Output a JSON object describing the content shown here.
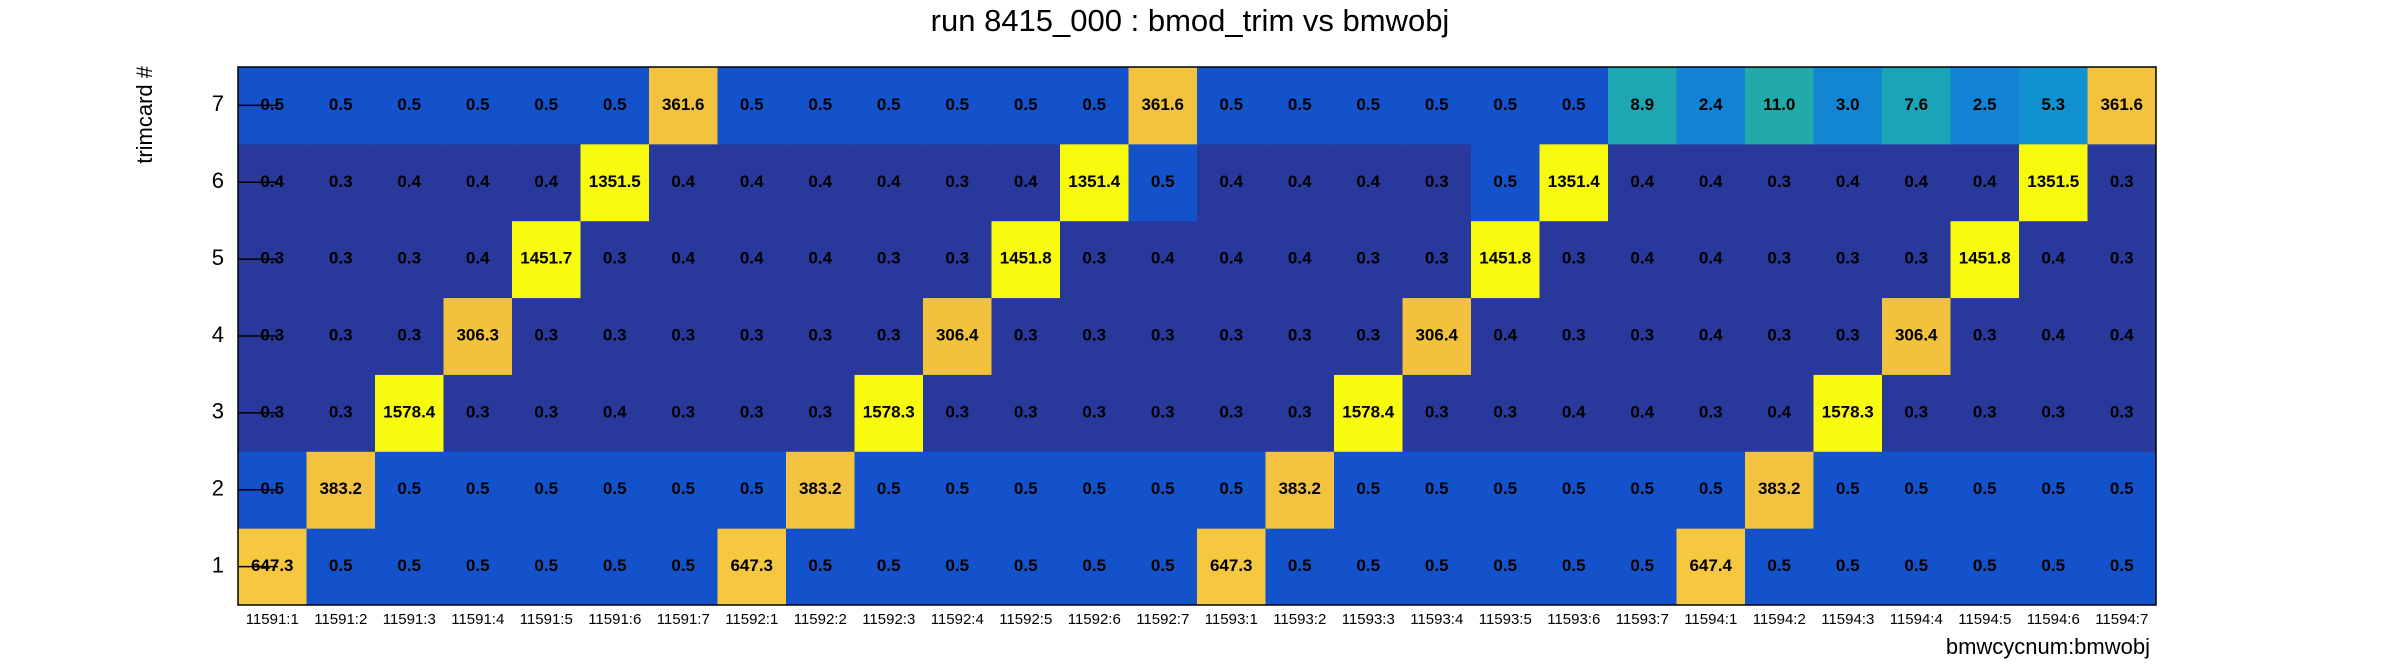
{
  "chart_data": {
    "type": "heatmap",
    "title": "run 8415_000 : bmod_trim vs bmwobj",
    "x_label": "bmwcycnum:bmwobj",
    "y_label": "trimcard #",
    "categories": [
      "11591:1",
      "11591:2",
      "11591:3",
      "11591:4",
      "11591:5",
      "11591:6",
      "11591:7",
      "11592:1",
      "11592:2",
      "11592:3",
      "11592:4",
      "11592:5",
      "11592:6",
      "11592:7",
      "11593:1",
      "11593:2",
      "11593:3",
      "11593:4",
      "11593:5",
      "11593:6",
      "11593:7",
      "11594:1",
      "11594:2",
      "11594:3",
      "11594:4",
      "11594:5",
      "11594:6",
      "11594:7"
    ],
    "ylim": [
      0.5,
      7.5
    ],
    "yticks": [
      1,
      2,
      3,
      4,
      5,
      6,
      7
    ],
    "z_log": true,
    "palette": {
      "stops": [
        0,
        0.04,
        0.06,
        0.24,
        0.27,
        0.34,
        0.38,
        0.42,
        0.6,
        0.8,
        0.9,
        0.98,
        1
      ],
      "colors": [
        "#29399b",
        "#29399b",
        "#1452cd",
        "#1283d4",
        "#1285d3",
        "#1192d0",
        "#1ba5b5",
        "#22aaa8",
        "#7fbf7b",
        "#f2c13e",
        "#f5c840",
        "#f8fa0e",
        "#f9fb0e"
      ]
    },
    "z": [
      [
        647.3,
        0.5,
        0.5,
        0.5,
        0.5,
        0.5,
        0.5,
        647.3,
        0.5,
        0.5,
        0.5,
        0.5,
        0.5,
        0.5,
        647.3,
        0.5,
        0.5,
        0.5,
        0.5,
        0.5,
        0.5,
        647.4,
        0.5,
        0.5,
        0.5,
        0.5,
        0.5,
        0.5
      ],
      [
        0.5,
        383.2,
        0.5,
        0.5,
        0.5,
        0.5,
        0.5,
        0.5,
        383.2,
        0.5,
        0.5,
        0.5,
        0.5,
        0.5,
        0.5,
        383.2,
        0.5,
        0.5,
        0.5,
        0.5,
        0.5,
        0.5,
        383.2,
        0.5,
        0.5,
        0.5,
        0.5,
        0.5
      ],
      [
        0.3,
        0.3,
        1578.4,
        0.3,
        0.3,
        0.4,
        0.3,
        0.3,
        0.3,
        1578.3,
        0.3,
        0.3,
        0.3,
        0.3,
        0.3,
        0.3,
        1578.4,
        0.3,
        0.3,
        0.4,
        0.4,
        0.3,
        0.4,
        1578.3,
        0.3,
        0.3,
        0.3,
        0.3
      ],
      [
        0.3,
        0.3,
        0.3,
        306.3,
        0.3,
        0.3,
        0.3,
        0.3,
        0.3,
        0.3,
        306.4,
        0.3,
        0.3,
        0.3,
        0.3,
        0.3,
        0.3,
        306.4,
        0.4,
        0.3,
        0.3,
        0.4,
        0.3,
        0.3,
        306.4,
        0.3,
        0.4,
        0.4
      ],
      [
        0.3,
        0.3,
        0.3,
        0.4,
        1451.7,
        0.3,
        0.4,
        0.4,
        0.4,
        0.3,
        0.3,
        1451.8,
        0.3,
        0.4,
        0.4,
        0.4,
        0.3,
        0.3,
        1451.8,
        0.3,
        0.4,
        0.4,
        0.3,
        0.3,
        0.3,
        1451.8,
        0.4,
        0.3
      ],
      [
        0.4,
        0.3,
        0.4,
        0.4,
        0.4,
        1351.5,
        0.4,
        0.4,
        0.4,
        0.4,
        0.3,
        0.4,
        1351.4,
        0.5,
        0.4,
        0.4,
        0.4,
        0.3,
        0.5,
        1351.4,
        0.4,
        0.4,
        0.3,
        0.4,
        0.4,
        0.4,
        1351.5,
        0.3
      ],
      [
        0.5,
        0.5,
        0.5,
        0.5,
        0.5,
        0.5,
        361.6,
        0.5,
        0.5,
        0.5,
        0.5,
        0.5,
        0.5,
        361.6,
        0.5,
        0.5,
        0.5,
        0.5,
        0.5,
        0.5,
        8.9,
        2.4,
        11.0,
        3.0,
        7.6,
        2.5,
        5.3,
        361.6
      ]
    ],
    "value_labels": [
      [
        "647.3",
        "0.5",
        "0.5",
        "0.5",
        "0.5",
        "0.5",
        "0.5",
        "647.3",
        "0.5",
        "0.5",
        "0.5",
        "0.5",
        "0.5",
        "0.5",
        "647.3",
        "0.5",
        "0.5",
        "0.5",
        "0.5",
        "0.5",
        "0.5",
        "647.4",
        "0.5",
        "0.5",
        "0.5",
        "0.5",
        "0.5",
        "0.5"
      ],
      [
        "0.5",
        "383.2",
        "0.5",
        "0.5",
        "0.5",
        "0.5",
        "0.5",
        "0.5",
        "383.2",
        "0.5",
        "0.5",
        "0.5",
        "0.5",
        "0.5",
        "0.5",
        "383.2",
        "0.5",
        "0.5",
        "0.5",
        "0.5",
        "0.5",
        "0.5",
        "383.2",
        "0.5",
        "0.5",
        "0.5",
        "0.5",
        "0.5"
      ],
      [
        "0.3",
        "0.3",
        "1578.4",
        "0.3",
        "0.3",
        "0.4",
        "0.3",
        "0.3",
        "0.3",
        "1578.3",
        "0.3",
        "0.3",
        "0.3",
        "0.3",
        "0.3",
        "0.3",
        "1578.4",
        "0.3",
        "0.3",
        "0.4",
        "0.4",
        "0.3",
        "0.4",
        "1578.3",
        "0.3",
        "0.3",
        "0.3",
        "0.3"
      ],
      [
        "0.3",
        "0.3",
        "0.3",
        "306.3",
        "0.3",
        "0.3",
        "0.3",
        "0.3",
        "0.3",
        "0.3",
        "306.4",
        "0.3",
        "0.3",
        "0.3",
        "0.3",
        "0.3",
        "0.3",
        "306.4",
        "0.4",
        "0.3",
        "0.3",
        "0.4",
        "0.3",
        "0.3",
        "306.4",
        "0.3",
        "0.4",
        "0.4"
      ],
      [
        "0.3",
        "0.3",
        "0.3",
        "0.4",
        "1451.7",
        "0.3",
        "0.4",
        "0.4",
        "0.4",
        "0.3",
        "0.3",
        "1451.8",
        "0.3",
        "0.4",
        "0.4",
        "0.4",
        "0.3",
        "0.3",
        "1451.8",
        "0.3",
        "0.4",
        "0.4",
        "0.3",
        "0.3",
        "0.3",
        "1451.8",
        "0.4",
        "0.3"
      ],
      [
        "0.4",
        "0.3",
        "0.4",
        "0.4",
        "0.4",
        "1351.5",
        "0.4",
        "0.4",
        "0.4",
        "0.4",
        "0.3",
        "0.4",
        "1351.4",
        "0.5",
        "0.4",
        "0.4",
        "0.4",
        "0.3",
        "0.5",
        "1351.4",
        "0.4",
        "0.4",
        "0.3",
        "0.4",
        "0.4",
        "0.4",
        "1351.5",
        "0.3"
      ],
      [
        "0.5",
        "0.5",
        "0.5",
        "0.5",
        "0.5",
        "0.5",
        "361.6",
        "0.5",
        "0.5",
        "0.5",
        "0.5",
        "0.5",
        "0.5",
        "361.6",
        "0.5",
        "0.5",
        "0.5",
        "0.5",
        "0.5",
        "0.5",
        "8.9",
        "2.4",
        "11.0",
        "3.0",
        "7.6",
        "2.5",
        "5.3",
        "361.6"
      ]
    ]
  }
}
